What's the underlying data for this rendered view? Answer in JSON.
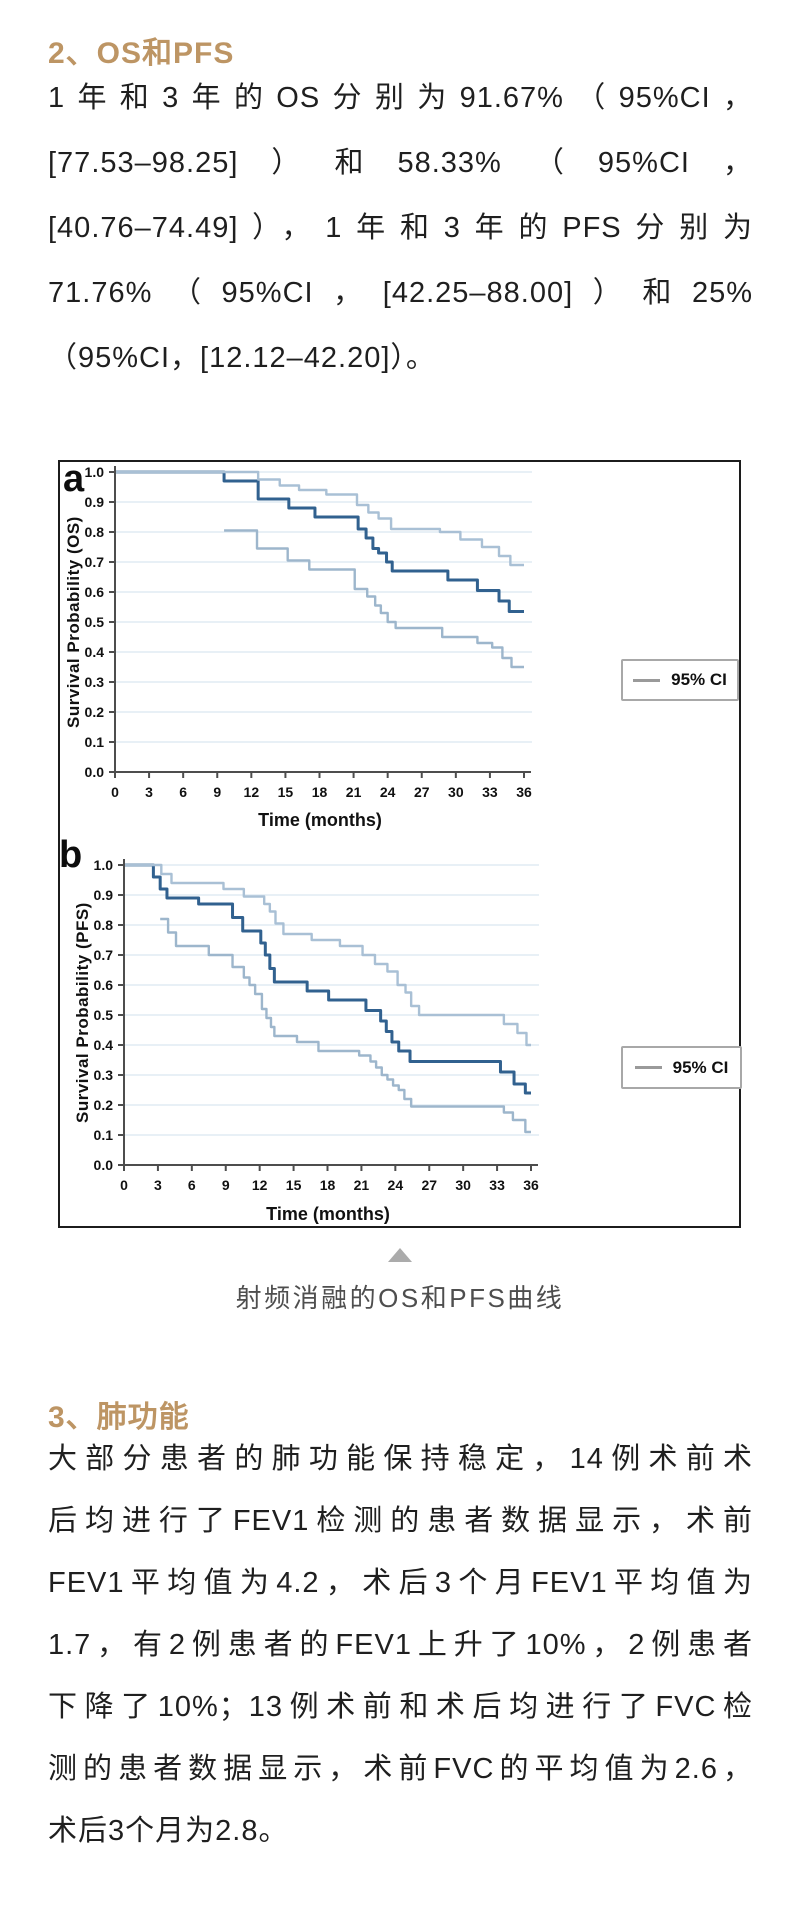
{
  "sections": {
    "os_pfs": {
      "heading": "2、OS和PFS",
      "lines": [
        "1年和3年的OS分别为91.67%（95%CI，",
        "[77.53–98.25]）和58.33%（95%CI，",
        "[40.76–74.49]），1年和3年的PFS分别为",
        "71.76%（95%CI，[42.25–88.00]）和25%",
        "（95%CI，[12.12–42.20]）。"
      ]
    },
    "lung": {
      "heading": "3、肺功能",
      "lines": [
        "大部分患者的肺功能保持稳定，14例术前术",
        "后均进行了FEV1检测的患者数据显示，术前",
        "FEV1平均值为4.2，术后3个月FEV1平均值为",
        "1.7，有2例患者的FEV1上升了10%，2例患者",
        "下降了10%；13例术前和术后均进行了FVC检",
        "测的患者数据显示，术前FVC的平均值为2.6，",
        "术后3个月为2.8。"
      ]
    }
  },
  "figure": {
    "caption": "射频消融的OS和PFS曲线",
    "arrow_icon": "triangle-up"
  },
  "chart_data": [
    {
      "type": "line",
      "subtype": "kaplan-meier-step",
      "panel_label": "a",
      "ylabel": "Survival Probability (OS)",
      "xlabel": "Time (months)",
      "xlim": [
        0,
        36
      ],
      "ylim": [
        0.0,
        1.0
      ],
      "xticks": [
        0,
        3,
        6,
        9,
        12,
        15,
        18,
        21,
        24,
        27,
        30,
        33,
        36
      ],
      "yticks": [
        0.0,
        0.1,
        0.2,
        0.3,
        0.4,
        0.5,
        0.6,
        0.7,
        0.8,
        0.9,
        1.0
      ],
      "grid": true,
      "legend": {
        "label": "95% CI",
        "position": "right-bottom"
      },
      "colors": {
        "grid": "#e8f0f6",
        "axis": "#4d4d4d"
      },
      "series": [
        {
          "name": "OS estimate",
          "color": "#31618f",
          "width": 3,
          "step_points": [
            [
              0,
              1.0
            ],
            [
              9.6,
              0.97
            ],
            [
              12.6,
              0.91
            ],
            [
              15.3,
              0.88
            ],
            [
              17.6,
              0.85
            ],
            [
              21.4,
              0.81
            ],
            [
              22.1,
              0.78
            ],
            [
              22.7,
              0.745
            ],
            [
              23.2,
              0.73
            ],
            [
              23.9,
              0.7
            ],
            [
              24.4,
              0.67
            ],
            [
              29.3,
              0.64
            ],
            [
              31.9,
              0.605
            ],
            [
              33.8,
              0.57
            ],
            [
              34.7,
              0.535
            ]
          ]
        },
        {
          "name": "95% CI upper",
          "color": "#a9c0d5",
          "width": 2.4,
          "step_points": [
            [
              0,
              1.0
            ],
            [
              12.6,
              0.975
            ],
            [
              14.5,
              0.955
            ],
            [
              16.2,
              0.94
            ],
            [
              18.6,
              0.925
            ],
            [
              21.3,
              0.89
            ],
            [
              22.3,
              0.865
            ],
            [
              23.2,
              0.845
            ],
            [
              24.3,
              0.81
            ],
            [
              28.6,
              0.8
            ],
            [
              30.4,
              0.775
            ],
            [
              32.3,
              0.75
            ],
            [
              33.8,
              0.72
            ],
            [
              34.8,
              0.69
            ]
          ]
        },
        {
          "name": "95% CI lower",
          "color": "#9db6cc",
          "width": 2.4,
          "step_points": [
            [
              9.6,
              0.805
            ],
            [
              12.5,
              0.745
            ],
            [
              15.2,
              0.705
            ],
            [
              17.1,
              0.675
            ],
            [
              21.1,
              0.61
            ],
            [
              22.2,
              0.585
            ],
            [
              22.9,
              0.555
            ],
            [
              23.4,
              0.53
            ],
            [
              24.0,
              0.5
            ],
            [
              24.7,
              0.48
            ],
            [
              28.8,
              0.45
            ],
            [
              31.9,
              0.43
            ],
            [
              33.2,
              0.415
            ],
            [
              34.1,
              0.38
            ],
            [
              34.9,
              0.35
            ]
          ]
        }
      ]
    },
    {
      "type": "line",
      "subtype": "kaplan-meier-step",
      "panel_label": "b",
      "ylabel": "Survival Probability (PFS)",
      "xlabel": "Time (months)",
      "xlim": [
        0,
        36
      ],
      "ylim": [
        0.0,
        1.0
      ],
      "xticks": [
        0,
        3,
        6,
        9,
        12,
        15,
        18,
        21,
        24,
        27,
        30,
        33,
        36
      ],
      "yticks": [
        0.0,
        0.1,
        0.2,
        0.3,
        0.4,
        0.5,
        0.6,
        0.7,
        0.8,
        0.9,
        1.0
      ],
      "grid": true,
      "legend": {
        "label": "95% CI",
        "position": "right-bottom"
      },
      "colors": {
        "grid": "#e8f0f6",
        "axis": "#4d4d4d"
      },
      "series": [
        {
          "name": "PFS estimate",
          "color": "#31618f",
          "width": 3,
          "step_points": [
            [
              0,
              1.0
            ],
            [
              2.6,
              0.96
            ],
            [
              3.2,
              0.92
            ],
            [
              3.8,
              0.89
            ],
            [
              6.6,
              0.87
            ],
            [
              9.6,
              0.825
            ],
            [
              10.5,
              0.78
            ],
            [
              12.1,
              0.74
            ],
            [
              12.5,
              0.7
            ],
            [
              12.9,
              0.655
            ],
            [
              13.3,
              0.61
            ],
            [
              16.2,
              0.58
            ],
            [
              18.1,
              0.55
            ],
            [
              21.4,
              0.515
            ],
            [
              22.7,
              0.48
            ],
            [
              23.2,
              0.445
            ],
            [
              23.7,
              0.41
            ],
            [
              24.3,
              0.38
            ],
            [
              25.3,
              0.345
            ],
            [
              33.3,
              0.31
            ],
            [
              34.5,
              0.27
            ],
            [
              35.5,
              0.24
            ]
          ]
        },
        {
          "name": "95% CI upper",
          "color": "#a9c0d5",
          "width": 2.4,
          "step_points": [
            [
              0,
              1.0
            ],
            [
              3.3,
              0.97
            ],
            [
              4.2,
              0.94
            ],
            [
              8.8,
              0.92
            ],
            [
              10.6,
              0.895
            ],
            [
              12.4,
              0.87
            ],
            [
              12.9,
              0.845
            ],
            [
              13.4,
              0.805
            ],
            [
              14.1,
              0.77
            ],
            [
              16.6,
              0.75
            ],
            [
              19.1,
              0.73
            ],
            [
              21.1,
              0.7
            ],
            [
              22.2,
              0.67
            ],
            [
              23.3,
              0.645
            ],
            [
              24.2,
              0.6
            ],
            [
              24.9,
              0.575
            ],
            [
              25.4,
              0.53
            ],
            [
              26.1,
              0.5
            ],
            [
              33.6,
              0.47
            ],
            [
              34.8,
              0.44
            ],
            [
              35.6,
              0.4
            ]
          ]
        },
        {
          "name": "95% CI lower",
          "color": "#9db6cc",
          "width": 2.4,
          "step_points": [
            [
              3.2,
              0.82
            ],
            [
              3.9,
              0.775
            ],
            [
              4.6,
              0.73
            ],
            [
              7.5,
              0.7
            ],
            [
              9.6,
              0.66
            ],
            [
              10.6,
              0.625
            ],
            [
              11.1,
              0.6
            ],
            [
              11.6,
              0.57
            ],
            [
              12.2,
              0.52
            ],
            [
              12.6,
              0.49
            ],
            [
              13.0,
              0.46
            ],
            [
              13.3,
              0.43
            ],
            [
              15.3,
              0.41
            ],
            [
              17.2,
              0.38
            ],
            [
              20.8,
              0.365
            ],
            [
              21.8,
              0.345
            ],
            [
              22.3,
              0.325
            ],
            [
              22.8,
              0.3
            ],
            [
              23.3,
              0.285
            ],
            [
              23.8,
              0.265
            ],
            [
              24.3,
              0.25
            ],
            [
              24.8,
              0.22
            ],
            [
              25.4,
              0.195
            ],
            [
              33.6,
              0.175
            ],
            [
              34.4,
              0.15
            ],
            [
              35.5,
              0.11
            ]
          ]
        }
      ]
    }
  ]
}
